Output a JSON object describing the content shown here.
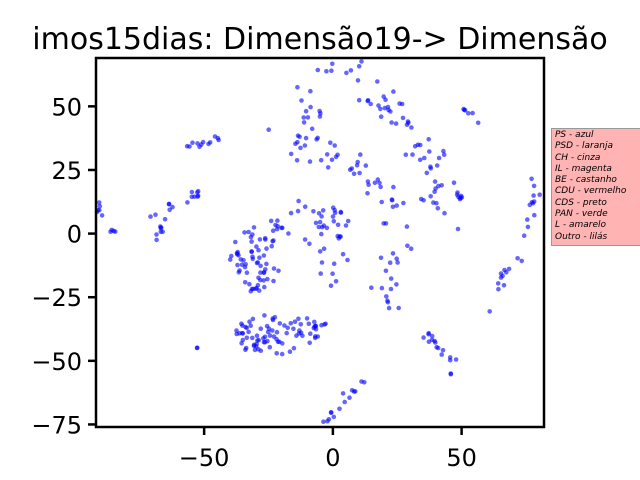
{
  "chart_data": {
    "type": "scatter",
    "title": "imos15dias: Dimensão19-> Dimensão",
    "xlabel": "",
    "ylabel": "",
    "xlim": [
      -92,
      82
    ],
    "ylim": [
      -76,
      69
    ],
    "xticks": [
      -50,
      0,
      50
    ],
    "yticks": [
      50,
      25,
      0,
      -25,
      -50,
      -75
    ],
    "xtick_labels": [
      "−50",
      "0",
      "50"
    ],
    "ytick_labels": [
      "50",
      "25",
      "0",
      "−25",
      "−50",
      "−75"
    ],
    "grid": false,
    "legend_position": "outside-right",
    "legend_entries": [
      "PS - azul",
      "PSD - laranja",
      "CH - cinza",
      "IL - magenta",
      "BE - castanho",
      "CDU - vermelho",
      "CDS - preto",
      "PAN - verde",
      "L - amarelo",
      "Outro - lilás"
    ],
    "point_color": "#0000ff",
    "series": [
      {
        "clusters": [
          {
            "kind": "curve",
            "points": [
              [
                -10,
                35
              ],
              [
                -12,
                47
              ],
              [
                -9,
                60
              ],
              [
                0,
                68
              ],
              [
                10,
                66
              ],
              [
                18,
                58
              ],
              [
                25,
                48
              ],
              [
                33,
                35
              ],
              [
                38,
                25
              ],
              [
                40,
                5
              ]
            ],
            "spread": 2.5,
            "count": 60
          },
          {
            "kind": "curve",
            "points": [
              [
                -18,
                38
              ],
              [
                -10,
                32
              ],
              [
                0,
                28
              ],
              [
                12,
                25
              ],
              [
                20,
                20
              ],
              [
                24,
                10
              ],
              [
                26,
                -5
              ],
              [
                22,
                -20
              ],
              [
                18,
                -33
              ]
            ],
            "spread": 3.2,
            "count": 60
          },
          {
            "kind": "curve",
            "points": [
              [
                10,
                54
              ],
              [
                22,
                48
              ],
              [
                35,
                40
              ],
              [
                45,
                30
              ],
              [
                50,
                15
              ],
              [
                50,
                -2
              ]
            ],
            "spread": 1.3,
            "count": 25
          },
          {
            "kind": "curve",
            "points": [
              [
                -12,
                -5
              ],
              [
                -10,
                2
              ],
              [
                -2,
                7
              ],
              [
                5,
                4
              ],
              [
                4,
                -10
              ],
              [
                10,
                -10
              ]
            ],
            "spread": 2.2,
            "count": 25
          },
          {
            "kind": "curve",
            "points": [
              [
                -25,
                -6
              ],
              [
                -20,
                8
              ],
              [
                -12,
                11
              ],
              [
                -5,
                4
              ],
              [
                -4,
                -12
              ],
              [
                3,
                -22
              ]
            ],
            "spread": 1.8,
            "count": 25
          },
          {
            "kind": "blob",
            "center": [
              -30,
              -10
            ],
            "radius": [
              10,
              13
            ],
            "count": 60
          },
          {
            "kind": "blob",
            "center": [
              -25,
              -40
            ],
            "radius": [
              14,
              8
            ],
            "count": 60
          },
          {
            "kind": "blob",
            "center": [
              -10,
              -38
            ],
            "radius": [
              9,
              5
            ],
            "count": 25
          },
          {
            "kind": "curve",
            "points": [
              [
                -56,
                34
              ],
              [
                -48,
                36
              ],
              [
                -40,
                39
              ]
            ],
            "spread": 0.6,
            "count": 12
          },
          {
            "kind": "curve",
            "points": [
              [
                -65,
                10
              ],
              [
                -58,
                13
              ],
              [
                -50,
                18
              ]
            ],
            "spread": 0.9,
            "count": 12
          },
          {
            "kind": "curve",
            "points": [
              [
                -70,
                7
              ],
              [
                -65,
                6
              ],
              [
                -68,
                0
              ],
              [
                -68,
                -5
              ]
            ],
            "spread": 0.7,
            "count": 10
          },
          {
            "kind": "curve",
            "points": [
              [
                -92,
                12
              ],
              [
                -90,
                5
              ]
            ],
            "spread": 0.8,
            "count": 6
          },
          {
            "kind": "curve",
            "points": [
              [
                -88,
                0
              ],
              [
                -85,
                1
              ]
            ],
            "spread": 0.5,
            "count": 4
          },
          {
            "kind": "curve",
            "points": [
              [
                -3,
                -75
              ],
              [
                5,
                -65
              ],
              [
                12,
                -57
              ]
            ],
            "spread": 1.2,
            "count": 15
          },
          {
            "kind": "curve",
            "points": [
              [
                33,
                -37
              ],
              [
                40,
                -44
              ],
              [
                47,
                -50
              ]
            ],
            "spread": 1.2,
            "count": 15
          },
          {
            "kind": "curve",
            "points": [
              [
                77,
                25
              ],
              [
                78,
                12
              ],
              [
                74,
                -2
              ]
            ],
            "spread": 1.0,
            "count": 12
          },
          {
            "kind": "curve",
            "points": [
              [
                73,
                -10
              ],
              [
                66,
                -17
              ],
              [
                60,
                -30
              ]
            ],
            "spread": 1.0,
            "count": 12
          },
          {
            "kind": "curve",
            "points": [
              [
                50,
                50
              ],
              [
                57,
                43
              ]
            ],
            "spread": 0.6,
            "count": 6
          },
          {
            "kind": "curve",
            "points": [
              [
                -5,
                48
              ],
              [
                -5,
                46
              ]
            ],
            "spread": 0.3,
            "count": 3
          },
          {
            "kind": "curve",
            "points": [
              [
                -53,
                -45
              ],
              [
                -52,
                -45
              ]
            ],
            "spread": 0.2,
            "count": 2
          },
          {
            "kind": "curve",
            "points": [
              [
                45,
                -55
              ],
              [
                46,
                -55
              ]
            ],
            "spread": 0.2,
            "count": 2
          },
          {
            "kind": "curve",
            "points": [
              [
                2,
                -1
              ],
              [
                3,
                -1
              ]
            ],
            "spread": 0.2,
            "count": 2
          }
        ]
      }
    ]
  }
}
